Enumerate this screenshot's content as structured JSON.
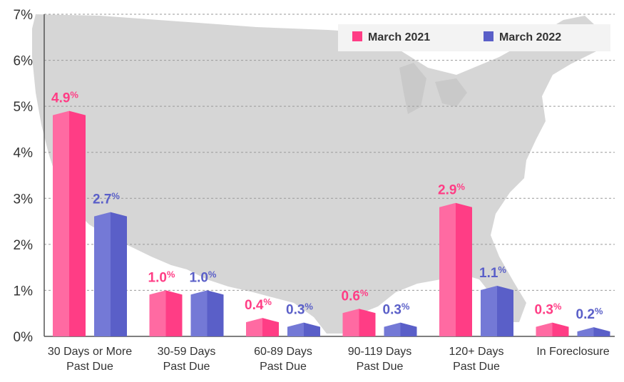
{
  "chart_data": {
    "type": "bar",
    "categories": [
      [
        "30 Days or More",
        "Past Due"
      ],
      [
        "30-59 Days",
        "Past Due"
      ],
      [
        "60-89 Days",
        "Past Due"
      ],
      [
        "90-119 Days",
        "Past Due"
      ],
      [
        "120+ Days",
        "Past Due"
      ],
      [
        "In Foreclosure"
      ]
    ],
    "series": [
      {
        "name": "March 2021",
        "values": [
          4.9,
          1.0,
          0.4,
          0.6,
          2.9,
          0.3
        ],
        "color": "#ff3d85",
        "color_light": "#ff6aa2"
      },
      {
        "name": "March 2022",
        "values": [
          2.7,
          1.0,
          0.3,
          0.3,
          1.1,
          0.2
        ],
        "color": "#5a5fc8",
        "color_light": "#7479d6"
      }
    ],
    "value_labels": [
      [
        "4.9",
        "1.0",
        "0.4",
        "0.6",
        "2.9",
        "0.3"
      ],
      [
        "2.7",
        "1.0",
        "0.3",
        "0.3",
        "1.1",
        "0.2"
      ]
    ],
    "value_suffix": "%",
    "y_ticks": [
      "0%",
      "1%",
      "2%",
      "3%",
      "4%",
      "5%",
      "6%",
      "7%"
    ],
    "ylim": [
      0,
      7
    ],
    "grid": true,
    "legend_position": "top-right",
    "background": "map of the United States (light gray)"
  }
}
